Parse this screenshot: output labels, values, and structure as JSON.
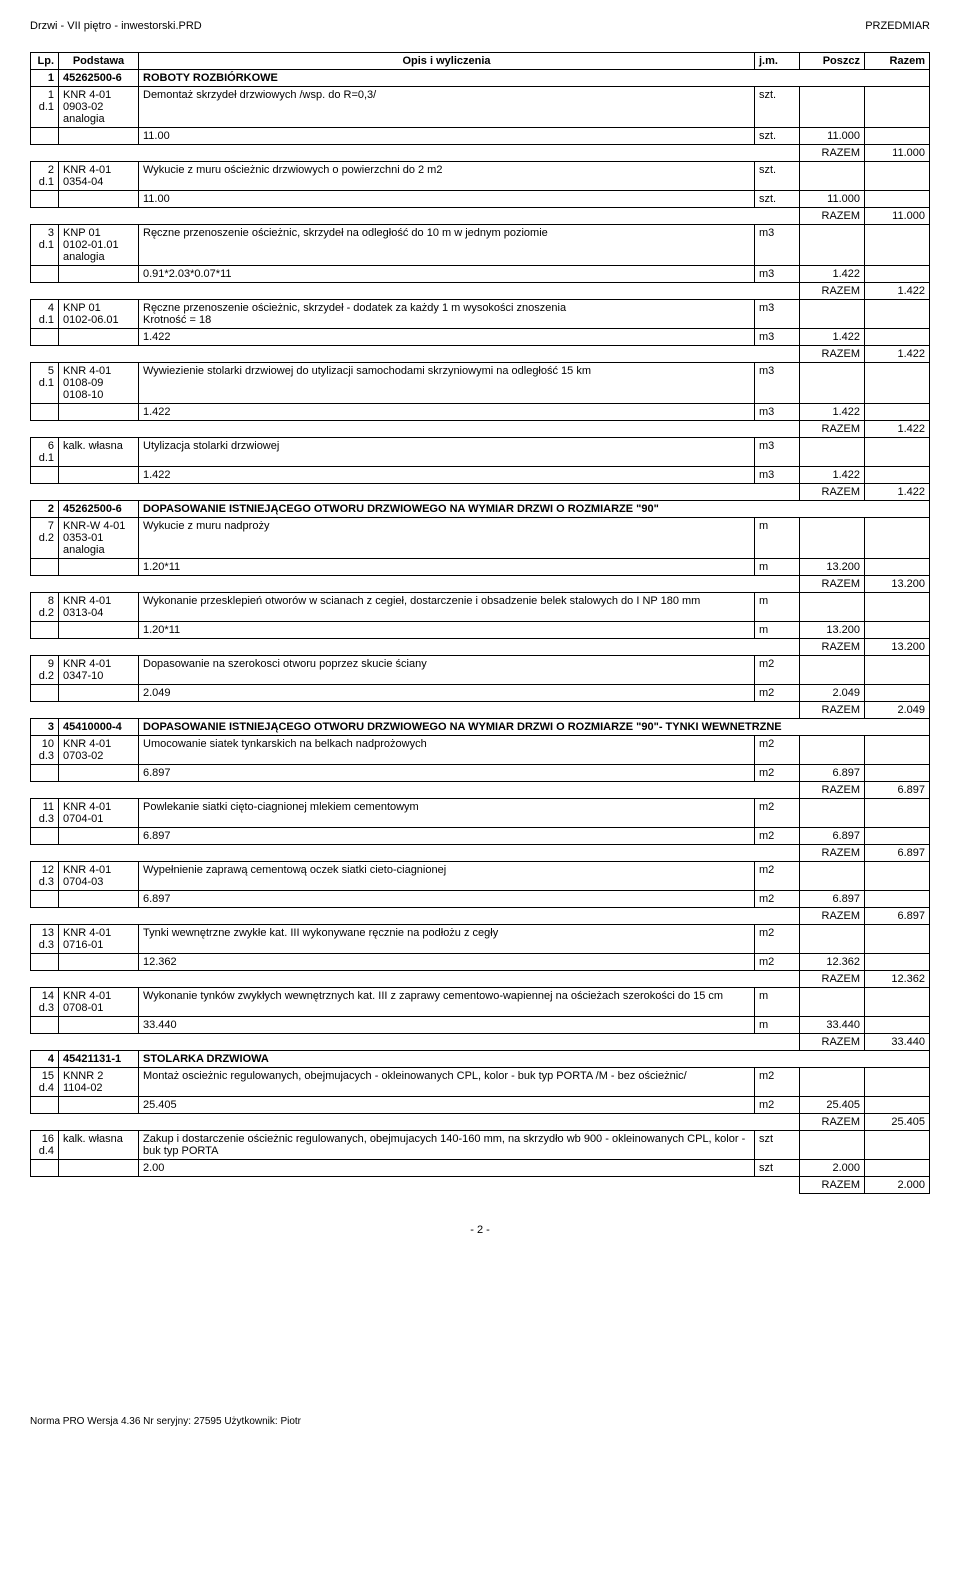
{
  "header": {
    "left": "Drzwi - VII piętro - inwestorski.PRD",
    "right": "PRZEDMIAR"
  },
  "columns": {
    "lp": "Lp.",
    "basis": "Podstawa",
    "desc": "Opis i wyliczenia",
    "jm": "j.m.",
    "poszcz": "Poszcz",
    "razem": "Razem"
  },
  "razem_label": "RAZEM",
  "rows": [
    {
      "type": "section",
      "lp": "1",
      "basis": "45262500-6",
      "desc": "ROBOTY ROZBIÓRKOWE"
    },
    {
      "type": "item",
      "lp": "1\nd.1",
      "basis": "KNR 4-01\n0903-02\nanalogia",
      "desc": "Demontaż skrzydeł drzwiowych /wsp. do R=0,3/",
      "jm": "szt."
    },
    {
      "type": "calc",
      "desc": "11.00",
      "jm": "szt.",
      "poszcz": "11.000"
    },
    {
      "type": "razem",
      "val": "11.000"
    },
    {
      "type": "item",
      "lp": "2\nd.1",
      "basis": "KNR 4-01\n0354-04",
      "desc": "Wykucie z muru ościeżnic drzwiowych o powierzchni do 2 m2",
      "jm": "szt."
    },
    {
      "type": "calc",
      "desc": "11.00",
      "jm": "szt.",
      "poszcz": "11.000"
    },
    {
      "type": "razem",
      "val": "11.000"
    },
    {
      "type": "item",
      "lp": "3\nd.1",
      "basis": "KNP 01\n0102-01.01\nanalogia",
      "desc": "Ręczne przenoszenie ościeżnic, skrzydeł na odległość do 10 m w jednym poziomie",
      "jm": "m3"
    },
    {
      "type": "calc",
      "desc": "0.91*2.03*0.07*11",
      "jm": "m3",
      "poszcz": "1.422"
    },
    {
      "type": "razem",
      "val": "1.422"
    },
    {
      "type": "item",
      "lp": "4\nd.1",
      "basis": "KNP 01\n0102-06.01",
      "desc": "Ręczne przenoszenie ościeżnic, skrzydeł - dodatek za każdy 1 m wysokości znoszenia\nKrotność = 18",
      "jm": "m3"
    },
    {
      "type": "calc",
      "desc": "1.422",
      "jm": "m3",
      "poszcz": "1.422"
    },
    {
      "type": "razem",
      "val": "1.422"
    },
    {
      "type": "item",
      "lp": "5\nd.1",
      "basis": "KNR 4-01\n0108-09\n0108-10",
      "desc": "Wywiezienie stolarki drzwiowej do utylizacji samochodami skrzyniowymi na odległość 15 km",
      "jm": "m3"
    },
    {
      "type": "calc",
      "desc": "1.422",
      "jm": "m3",
      "poszcz": "1.422"
    },
    {
      "type": "razem",
      "val": "1.422"
    },
    {
      "type": "item",
      "lp": "6\nd.1",
      "basis": "kalk. własna",
      "desc": "Utylizacja stolarki drzwiowej",
      "jm": "m3"
    },
    {
      "type": "calc",
      "desc": "1.422",
      "jm": "m3",
      "poszcz": "1.422"
    },
    {
      "type": "razem",
      "val": "1.422"
    },
    {
      "type": "section",
      "lp": "2",
      "basis": "45262500-6",
      "desc": "DOPASOWANIE ISTNIEJĄCEGO OTWORU DRZWIOWEGO NA WYMIAR DRZWI O ROZMIARZE \"90\""
    },
    {
      "type": "item",
      "lp": "7\nd.2",
      "basis": "KNR-W 4-01\n0353-01\nanalogia",
      "desc": "Wykucie z muru nadproży",
      "jm": "m"
    },
    {
      "type": "calc",
      "desc": "1.20*11",
      "jm": "m",
      "poszcz": "13.200"
    },
    {
      "type": "razem",
      "val": "13.200"
    },
    {
      "type": "item",
      "lp": "8\nd.2",
      "basis": "KNR 4-01\n0313-04",
      "desc": "Wykonanie przesklepień otworów w scianach z cegieł, dostarczenie i obsadzenie belek stalowych do I NP 180 mm",
      "jm": "m"
    },
    {
      "type": "calc",
      "desc": "1.20*11",
      "jm": "m",
      "poszcz": "13.200"
    },
    {
      "type": "razem",
      "val": "13.200"
    },
    {
      "type": "item",
      "lp": "9\nd.2",
      "basis": "KNR 4-01\n0347-10",
      "desc": "Dopasowanie na szerokosci otworu poprzez skucie ściany",
      "jm": "m2"
    },
    {
      "type": "calc",
      "desc": "2.049",
      "jm": "m2",
      "poszcz": "2.049"
    },
    {
      "type": "razem",
      "val": "2.049"
    },
    {
      "type": "section",
      "lp": "3",
      "basis": "45410000-4",
      "desc": "DOPASOWANIE ISTNIEJĄCEGO OTWORU DRZWIOWEGO NA WYMIAR DRZWI O ROZMIARZE \"90\"- TYNKI WEWNETRZNE"
    },
    {
      "type": "item",
      "lp": "10\nd.3",
      "basis": "KNR 4-01\n0703-02",
      "desc": "Umocowanie siatek tynkarskich na belkach nadprożowych",
      "jm": "m2"
    },
    {
      "type": "calc",
      "desc": "6.897",
      "jm": "m2",
      "poszcz": "6.897"
    },
    {
      "type": "razem",
      "val": "6.897"
    },
    {
      "type": "item",
      "lp": "11\nd.3",
      "basis": "KNR 4-01\n0704-01",
      "desc": "Powlekanie siatki cięto-ciagnionej mlekiem cementowym",
      "jm": "m2"
    },
    {
      "type": "calc",
      "desc": "6.897",
      "jm": "m2",
      "poszcz": "6.897"
    },
    {
      "type": "razem",
      "val": "6.897"
    },
    {
      "type": "item",
      "lp": "12\nd.3",
      "basis": "KNR 4-01\n0704-03",
      "desc": "Wypełnienie zaprawą cementową oczek siatki cieto-ciagnionej",
      "jm": "m2"
    },
    {
      "type": "calc",
      "desc": "6.897",
      "jm": "m2",
      "poszcz": "6.897"
    },
    {
      "type": "razem",
      "val": "6.897"
    },
    {
      "type": "item",
      "lp": "13\nd.3",
      "basis": "KNR 4-01\n0716-01",
      "desc": "Tynki wewnętrzne zwykłe kat. III wykonywane ręcznie na podłożu z cegły",
      "jm": "m2"
    },
    {
      "type": "calc",
      "desc": "12.362",
      "jm": "m2",
      "poszcz": "12.362"
    },
    {
      "type": "razem",
      "val": "12.362"
    },
    {
      "type": "item",
      "lp": "14\nd.3",
      "basis": "KNR 4-01\n0708-01",
      "desc": "Wykonanie tynków zwykłych wewnętrznych kat. III z zaprawy cementowo-wapiennej na ościeżach szerokości do 15 cm",
      "jm": "m"
    },
    {
      "type": "calc",
      "desc": "33.440",
      "jm": "m",
      "poszcz": "33.440"
    },
    {
      "type": "razem",
      "val": "33.440"
    },
    {
      "type": "section",
      "lp": "4",
      "basis": "45421131-1",
      "desc": "STOLARKA DRZWIOWA"
    },
    {
      "type": "item",
      "lp": "15\nd.4",
      "basis": "KNNR 2\n1104-02",
      "desc": "Montaż oscieżnic regulowanych, obejmujacych - okleinowanych CPL, kolor - buk typ PORTA /M - bez ościeżnic/",
      "jm": "m2"
    },
    {
      "type": "calc",
      "desc": "25.405",
      "jm": "m2",
      "poszcz": "25.405"
    },
    {
      "type": "razem",
      "val": "25.405"
    },
    {
      "type": "item",
      "lp": "16\nd.4",
      "basis": "kalk. własna",
      "desc": "Zakup i dostarczenie ościeżnic regulowanych, obejmujacych 140-160 mm, na skrzydło wb 900 - okleinowanych CPL, kolor - buk typ PORTA",
      "jm": "szt"
    },
    {
      "type": "calc",
      "desc": "2.00",
      "jm": "szt",
      "poszcz": "2.000"
    },
    {
      "type": "razem",
      "val": "2.000"
    }
  ],
  "footer": {
    "page": "- 2 -",
    "note": "Norma PRO Wersja 4.36 Nr seryjny: 27595 Użytkownik: Piotr"
  }
}
